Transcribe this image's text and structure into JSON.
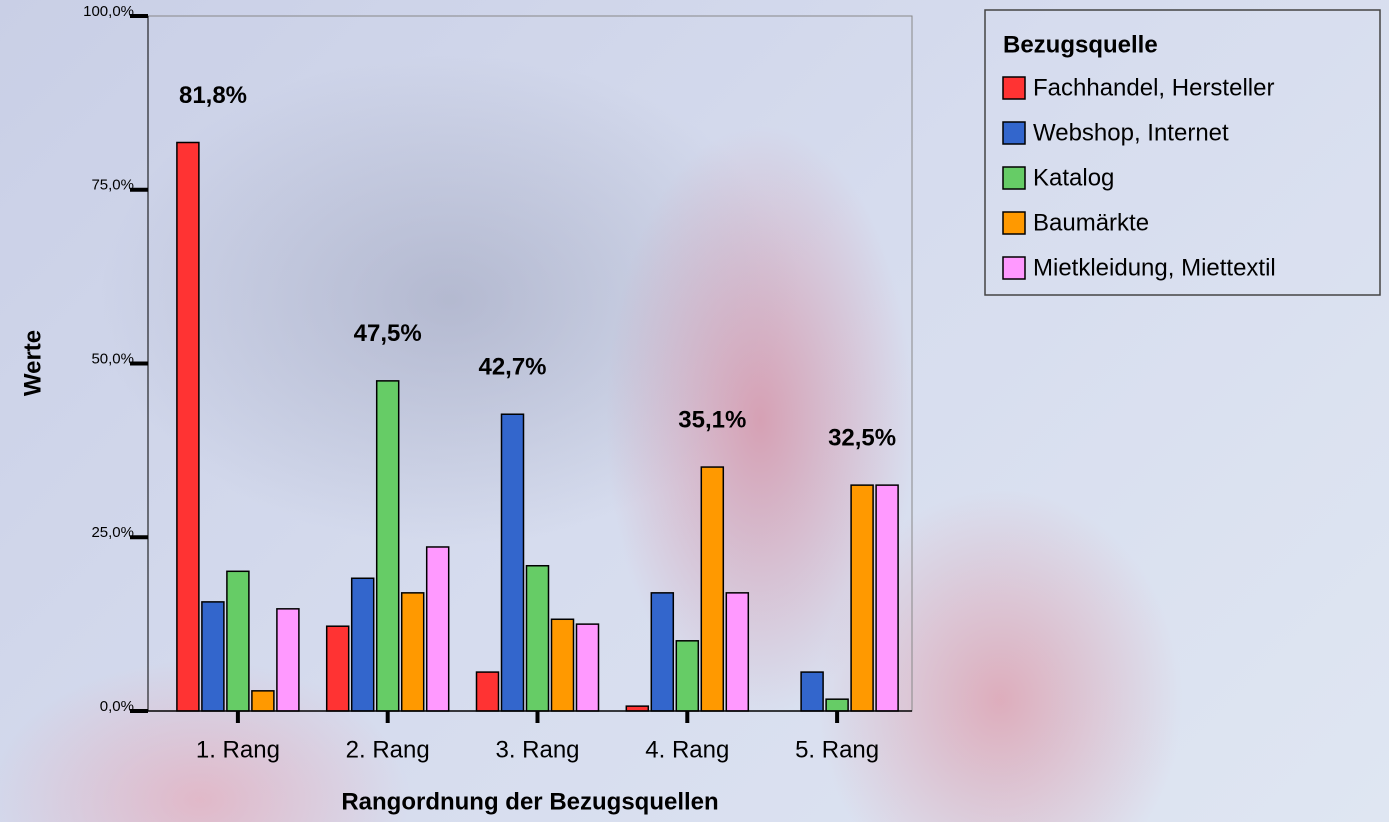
{
  "chart_data": {
    "type": "bar",
    "categories": [
      "1. Rang",
      "2. Rang",
      "3. Rang",
      "4. Rang",
      "5. Rang"
    ],
    "series": [
      {
        "name": "Fachhandel, Hersteller",
        "color": "#ff3333",
        "values": [
          81.8,
          12.2,
          5.6,
          0.7,
          0
        ],
        "value_labels": [
          "81,8%",
          null,
          null,
          null,
          null
        ]
      },
      {
        "name": "Webshop, Internet",
        "color": "#3366cc",
        "values": [
          15.7,
          19.1,
          42.7,
          17.0,
          5.6
        ],
        "value_labels": [
          null,
          null,
          "42,7%",
          null,
          null
        ]
      },
      {
        "name": "Katalog",
        "color": "#66cc66",
        "values": [
          20.1,
          47.5,
          20.9,
          10.1,
          1.7
        ],
        "value_labels": [
          null,
          "47,5%",
          null,
          null,
          null
        ]
      },
      {
        "name": "Baumärkte",
        "color": "#ff9900",
        "values": [
          2.9,
          17.0,
          13.2,
          35.1,
          32.5
        ],
        "value_labels": [
          null,
          null,
          null,
          "35,1%",
          "32,5%"
        ]
      },
      {
        "name": "Mietkleidung, Miettextil",
        "color": "#ff99ff",
        "values": [
          14.7,
          23.6,
          12.5,
          17.0,
          32.5
        ],
        "value_labels": [
          null,
          null,
          null,
          null,
          null
        ]
      }
    ],
    "ylim": [
      0,
      100
    ],
    "yticks": [
      {
        "value": 0,
        "label": "0,0%"
      },
      {
        "value": 25,
        "label": "25,0%"
      },
      {
        "value": 50,
        "label": "50,0%"
      },
      {
        "value": 75,
        "label": "75,0%"
      },
      {
        "value": 100,
        "label": "100,0%"
      }
    ],
    "y_label": "Werte",
    "x_label": "Rangordnung der Bezugsquellen",
    "legend_title": "Bezugsquelle",
    "legend": "top-right"
  }
}
